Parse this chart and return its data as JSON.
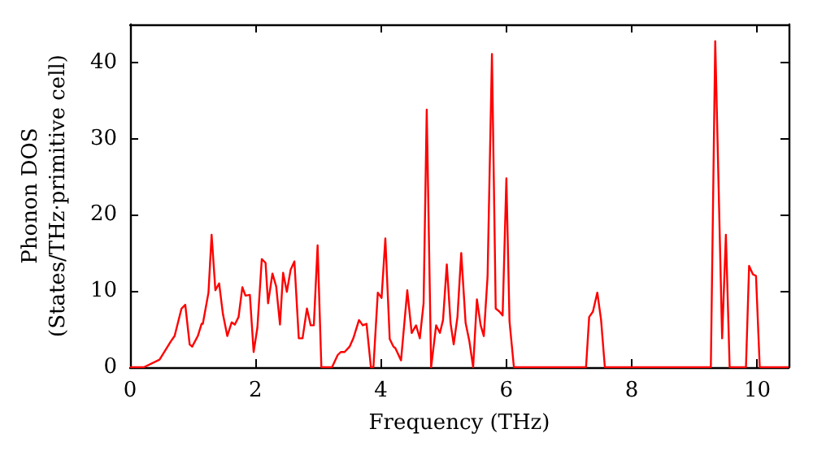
{
  "chart_data": {
    "type": "line",
    "xlabel": "Frequency (THz)",
    "ylabel": "Phonon DOS\n(States/THz·primitive cell)",
    "xlim": [
      0,
      10.5
    ],
    "xticks": [
      0,
      2,
      4,
      6,
      8,
      10
    ],
    "ylim": [
      0,
      45
    ],
    "yticks": [
      0,
      10,
      20,
      30,
      40
    ],
    "marker": "none",
    "line_style": "solid",
    "x": [
      0,
      0.22,
      0.47,
      0.65,
      0.71,
      0.82,
      0.88,
      0.95,
      0.99,
      1.08,
      1.14,
      1.16,
      1.25,
      1.3,
      1.36,
      1.42,
      1.48,
      1.55,
      1.62,
      1.67,
      1.73,
      1.79,
      1.84,
      1.91,
      1.97,
      2.03,
      2.1,
      2.16,
      2.2,
      2.27,
      2.33,
      2.39,
      2.44,
      2.5,
      2.56,
      2.62,
      2.69,
      2.75,
      2.82,
      2.88,
      2.93,
      2.99,
      3.05,
      3.22,
      3.31,
      3.36,
      3.42,
      3.5,
      3.56,
      3.65,
      3.71,
      3.77,
      3.84,
      3.88,
      3.95,
      4.01,
      4.07,
      4.14,
      4.2,
      4.23,
      4.32,
      4.42,
      4.49,
      4.56,
      4.62,
      4.68,
      4.73,
      4.8,
      4.88,
      4.94,
      4.99,
      5.05,
      5.11,
      5.16,
      5.22,
      5.28,
      5.35,
      5.41,
      5.47,
      5.53,
      5.59,
      5.64,
      5.7,
      5.77,
      5.83,
      5.89,
      5.94,
      6,
      6.05,
      6.12,
      7.27,
      7.32,
      7.38,
      7.45,
      7.51,
      7.57,
      9.26,
      9.33,
      9.44,
      9.5,
      9.56,
      9.82,
      9.87,
      9.93,
      9.98,
      10.04,
      10.5
    ],
    "series": [
      {
        "color": "#ff0000",
        "values": [
          0,
          0,
          1,
          3.4,
          4.1,
          7.7,
          8.2,
          3,
          2.7,
          4.1,
          5.7,
          5.7,
          9.8,
          17.4,
          10.1,
          11,
          7,
          4.1,
          5.9,
          5.6,
          6.6,
          10.5,
          9.4,
          9.5,
          2,
          5.2,
          14.2,
          13.7,
          8.4,
          12.3,
          10.6,
          5.6,
          12.4,
          9.9,
          12.8,
          13.9,
          3.8,
          3.8,
          7.7,
          5.5,
          5.5,
          16,
          0,
          0,
          1.6,
          2,
          2,
          2.7,
          3.8,
          6.2,
          5.5,
          5.7,
          0,
          0,
          9.8,
          9.1,
          16.9,
          3.7,
          2.7,
          2.5,
          0.9,
          10.1,
          4.5,
          5.5,
          3.8,
          8.4,
          33.8,
          0,
          5.5,
          4.5,
          6.2,
          13.5,
          5.8,
          3,
          6.6,
          15,
          5.8,
          3.4,
          0,
          8.9,
          5.5,
          4.1,
          11.9,
          41.1,
          7.7,
          7.3,
          6.8,
          24.8,
          6,
          0,
          0,
          6.6,
          7.3,
          9.8,
          6.2,
          0,
          0,
          42.8,
          3.8,
          17.4,
          0,
          0,
          13.3,
          12.2,
          12,
          0,
          0
        ]
      }
    ]
  }
}
